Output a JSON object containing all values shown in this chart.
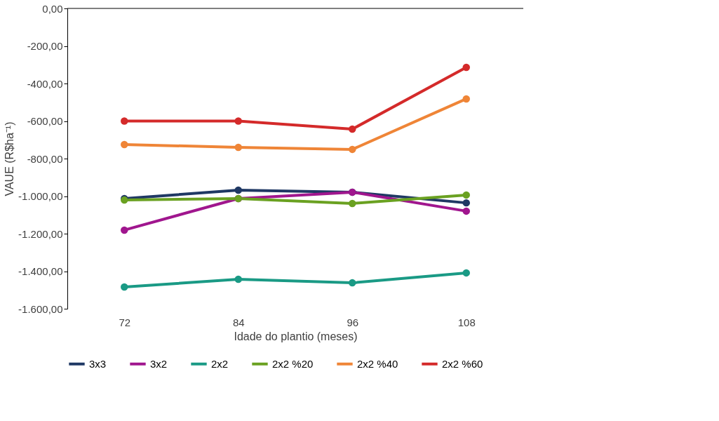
{
  "chart_data": {
    "type": "line",
    "xlabel": "Idade do plantio (meses)",
    "ylabel": "VAUE (R$ha⁻¹)",
    "categories": [
      "72",
      "84",
      "96",
      "108"
    ],
    "series": [
      {
        "name": "3x3",
        "color": "#1f3864",
        "values": [
          -1013,
          -968,
          -979,
          -1036
        ]
      },
      {
        "name": "3x2",
        "color": "#a0168e",
        "values": [
          -1181,
          -1013,
          -979,
          -1080
        ]
      },
      {
        "name": "2x2",
        "color": "#1a9a85",
        "values": [
          -1484,
          -1443,
          -1462,
          -1409
        ]
      },
      {
        "name": "2x2 %20",
        "color": "#6aa121",
        "values": [
          -1021,
          -1013,
          -1039,
          -994
        ]
      },
      {
        "name": "2x2 %40",
        "color": "#ef8537",
        "values": [
          -725,
          -740,
          -751,
          -482
        ]
      },
      {
        "name": "2x2 %60",
        "color": "#d42a2a",
        "values": [
          -600,
          -600,
          -643,
          -314
        ]
      }
    ],
    "ylim": [
      -1600,
      0
    ],
    "yticks": [
      {
        "value": -1600,
        "label": "-1.600,00"
      },
      {
        "value": -1400,
        "label": "-1.400,00"
      },
      {
        "value": -1200,
        "label": "-1.200,00"
      },
      {
        "value": -1000,
        "label": "-1.000,00"
      },
      {
        "value": -800,
        "label": "-800,00"
      },
      {
        "value": -600,
        "label": "-600,00"
      },
      {
        "value": -400,
        "label": "-400,00"
      },
      {
        "value": -200,
        "label": "-200,00"
      },
      {
        "value": 0,
        "label": "0,00"
      }
    ],
    "grid": false,
    "legend": "bottom",
    "marker": "circle",
    "line_style": "solid"
  }
}
